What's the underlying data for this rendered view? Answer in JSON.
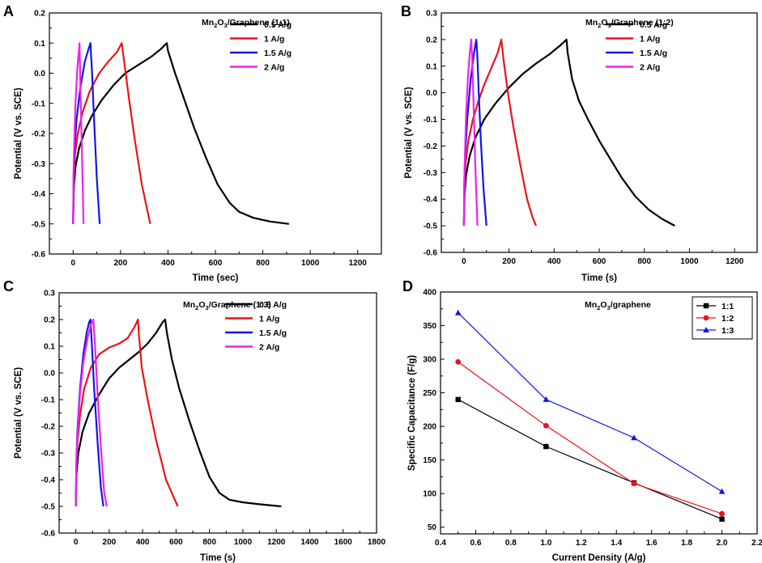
{
  "figure": {
    "colors": {
      "0.5 A/g": "#000000",
      "1 A/g": "#e8141a",
      "1.5 A/g": "#1414e6",
      "2 A/g": "#ee22ee",
      "1:1": "#000000",
      "1:2": "#e8141a",
      "1:3": "#1414e6"
    }
  },
  "chart_data": [
    {
      "id": "A",
      "type": "line",
      "panel_label": "A",
      "sample_label": {
        "pre": "Mn",
        "sub1": "2",
        "mid": "O",
        "sub2": "3",
        "post": "/Graphene (1:1)"
      },
      "xlabel": "Time (sec)",
      "ylabel": "Potential (V vs. SCE)",
      "xlim": [
        -100,
        1300
      ],
      "ylim": [
        -0.6,
        0.2
      ],
      "xticks": [
        0,
        200,
        400,
        600,
        800,
        1000,
        1200
      ],
      "yticks": [
        -0.6,
        -0.5,
        -0.4,
        -0.3,
        -0.2,
        -0.1,
        0.0,
        0.1,
        0.2
      ],
      "ytick_labels": [
        "-0.6",
        "-0.5",
        "-0.4",
        "-0.3",
        "-0.2",
        "-0.1",
        "0.0",
        "0.1",
        "0.2"
      ],
      "legend_position": "top-right",
      "series": [
        {
          "name": "0.5 A/g",
          "color": "#000000",
          "x": [
            0,
            3,
            10,
            25,
            50,
            80,
            120,
            170,
            220,
            280,
            330,
            370,
            395,
            400,
            430,
            470,
            510,
            560,
            610,
            660,
            700,
            760,
            830,
            910
          ],
          "y": [
            -0.5,
            -0.38,
            -0.31,
            -0.25,
            -0.19,
            -0.14,
            -0.09,
            -0.04,
            0.0,
            0.03,
            0.055,
            0.08,
            0.1,
            0.075,
            0.0,
            -0.09,
            -0.18,
            -0.28,
            -0.37,
            -0.43,
            -0.46,
            -0.48,
            -0.492,
            -0.5
          ]
        },
        {
          "name": "1 A/g",
          "color": "#e8141a",
          "x": [
            0,
            3,
            8,
            20,
            40,
            70,
            110,
            150,
            185,
            205,
            215,
            235,
            260,
            290,
            325
          ],
          "y": [
            -0.5,
            -0.35,
            -0.27,
            -0.2,
            -0.13,
            -0.06,
            0.0,
            0.04,
            0.07,
            0.1,
            0.04,
            -0.08,
            -0.22,
            -0.37,
            -0.5
          ]
        },
        {
          "name": "1.5 A/g",
          "color": "#1414e6",
          "x": [
            0,
            2,
            6,
            15,
            30,
            50,
            65,
            73,
            80,
            90,
            100,
            112
          ],
          "y": [
            -0.5,
            -0.34,
            -0.25,
            -0.15,
            -0.05,
            0.04,
            0.08,
            0.1,
            0.0,
            -0.18,
            -0.35,
            -0.5
          ]
        },
        {
          "name": "2 A/g",
          "color": "#ee22ee",
          "x": [
            0,
            2,
            5,
            10,
            18,
            25,
            27,
            30,
            36,
            44
          ],
          "y": [
            -0.5,
            -0.32,
            -0.22,
            -0.1,
            0.02,
            0.08,
            0.1,
            -0.02,
            -0.22,
            -0.5
          ]
        }
      ]
    },
    {
      "id": "B",
      "type": "line",
      "panel_label": "B",
      "sample_label": {
        "pre": "Mn",
        "sub1": "2",
        "mid": "O",
        "sub2": "3",
        "post": "/Graphene (1:2)"
      },
      "xlabel": "Time (s)",
      "ylabel": "Potential (V vs. SCE)",
      "xlim": [
        -100,
        1300
      ],
      "ylim": [
        -0.6,
        0.3
      ],
      "xticks": [
        0,
        200,
        400,
        600,
        800,
        1000,
        1200
      ],
      "yticks": [
        -0.6,
        -0.5,
        -0.4,
        -0.3,
        -0.2,
        -0.1,
        0.0,
        0.1,
        0.2,
        0.3
      ],
      "ytick_labels": [
        "-0.6",
        "-0.5",
        "-0.4",
        "-0.3",
        "-0.2",
        "-0.1",
        "0.0",
        "0.1",
        "0.2",
        "0.3"
      ],
      "legend_position": "top-right",
      "series": [
        {
          "name": "0.5 A/g",
          "color": "#000000",
          "x": [
            0,
            3,
            10,
            25,
            50,
            90,
            140,
            200,
            260,
            320,
            380,
            430,
            455,
            460,
            480,
            510,
            550,
            600,
            650,
            700,
            760,
            820,
            880,
            935
          ],
          "y": [
            -0.5,
            -0.38,
            -0.31,
            -0.24,
            -0.17,
            -0.1,
            -0.04,
            0.02,
            0.07,
            0.11,
            0.145,
            0.18,
            0.2,
            0.15,
            0.05,
            -0.03,
            -0.1,
            -0.18,
            -0.25,
            -0.32,
            -0.39,
            -0.44,
            -0.475,
            -0.5
          ]
        },
        {
          "name": "1 A/g",
          "color": "#e8141a",
          "x": [
            0,
            3,
            8,
            20,
            40,
            65,
            90,
            115,
            135,
            150,
            160,
            166,
            175,
            195,
            220,
            250,
            280,
            305,
            320
          ],
          "y": [
            -0.5,
            -0.35,
            -0.26,
            -0.18,
            -0.1,
            -0.03,
            0.03,
            0.08,
            0.12,
            0.15,
            0.18,
            0.2,
            0.13,
            0.0,
            -0.13,
            -0.27,
            -0.4,
            -0.47,
            -0.5
          ]
        },
        {
          "name": "1.5 A/g",
          "color": "#1414e6",
          "x": [
            0,
            2,
            6,
            15,
            30,
            45,
            55,
            60,
            66,
            75,
            87,
            100
          ],
          "y": [
            -0.5,
            -0.33,
            -0.23,
            -0.1,
            0.05,
            0.15,
            0.2,
            0.13,
            0.0,
            -0.18,
            -0.36,
            -0.5
          ]
        },
        {
          "name": "2 A/g",
          "color": "#ee22ee",
          "x": [
            0,
            2,
            5,
            10,
            18,
            27,
            33,
            37,
            42,
            50,
            60
          ],
          "y": [
            -0.5,
            -0.33,
            -0.22,
            -0.08,
            0.06,
            0.16,
            0.2,
            0.12,
            -0.02,
            -0.26,
            -0.5
          ]
        }
      ]
    },
    {
      "id": "C",
      "type": "line",
      "panel_label": "C",
      "sample_label": {
        "pre": "Mn",
        "sub1": "2",
        "mid": "O",
        "sub2": "3",
        "post": "/Graphene (1:3)"
      },
      "xlabel": "Time (s)",
      "ylabel": "Potential (V vs. SCE)",
      "xlim": [
        -100,
        1800
      ],
      "ylim": [
        -0.6,
        0.3
      ],
      "xticks": [
        0,
        200,
        400,
        600,
        800,
        1000,
        1200,
        1400,
        1600,
        1800
      ],
      "yticks": [
        -0.6,
        -0.5,
        -0.4,
        -0.3,
        -0.2,
        -0.1,
        0.0,
        0.1,
        0.2,
        0.3
      ],
      "ytick_labels": [
        "-0.6",
        "-0.5",
        "-0.4",
        "-0.3",
        "-0.2",
        "-0.1",
        "0.0",
        "0.1",
        "0.2",
        "0.3"
      ],
      "legend_position": "top-right",
      "series": [
        {
          "name": "0.5 A/g",
          "color": "#000000",
          "x": [
            0,
            4,
            15,
            40,
            80,
            140,
            200,
            260,
            320,
            380,
            430,
            480,
            520,
            535,
            545,
            575,
            620,
            680,
            740,
            800,
            860,
            920,
            1000,
            1100,
            1230
          ],
          "y": [
            -0.5,
            -0.38,
            -0.3,
            -0.22,
            -0.15,
            -0.08,
            -0.02,
            0.02,
            0.05,
            0.08,
            0.11,
            0.15,
            0.19,
            0.2,
            0.15,
            0.05,
            -0.06,
            -0.18,
            -0.29,
            -0.39,
            -0.45,
            -0.475,
            -0.485,
            -0.492,
            -0.5
          ]
        },
        {
          "name": "1 A/g",
          "color": "#e8141a",
          "x": [
            0,
            3,
            10,
            25,
            50,
            90,
            140,
            200,
            260,
            310,
            350,
            372,
            378,
            395,
            430,
            480,
            540,
            610
          ],
          "y": [
            -0.5,
            -0.36,
            -0.26,
            -0.16,
            -0.06,
            0.02,
            0.07,
            0.095,
            0.11,
            0.13,
            0.17,
            0.2,
            0.14,
            0.02,
            -0.1,
            -0.25,
            -0.4,
            -0.5
          ]
        },
        {
          "name": "1.5 A/g",
          "color": "#1414e6",
          "x": [
            0,
            3,
            10,
            25,
            45,
            65,
            80,
            88,
            95,
            110,
            130,
            150,
            165
          ],
          "y": [
            -0.5,
            -0.33,
            -0.21,
            -0.06,
            0.07,
            0.15,
            0.19,
            0.2,
            0.12,
            -0.06,
            -0.26,
            -0.43,
            -0.5
          ]
        },
        {
          "name": "2 A/g",
          "color": "#ee22ee",
          "x": [
            0,
            3,
            10,
            25,
            45,
            70,
            90,
            105,
            115,
            130,
            150,
            170,
            185
          ],
          "y": [
            -0.5,
            -0.35,
            -0.23,
            -0.08,
            0.04,
            0.13,
            0.18,
            0.2,
            0.1,
            -0.08,
            -0.28,
            -0.45,
            -0.5
          ]
        }
      ]
    },
    {
      "id": "D",
      "type": "line",
      "panel_label": "D",
      "sample_label": {
        "pre": "Mn",
        "sub1": "2",
        "mid": "O",
        "sub2": "3",
        "post": "/graphene"
      },
      "xlabel": "Current Density (A/g)",
      "ylabel": "Specific Capacitance (F/g)",
      "xlim": [
        0.4,
        2.2
      ],
      "ylim": [
        40,
        400
      ],
      "xticks": [
        0.4,
        0.6,
        0.8,
        1.0,
        1.2,
        1.4,
        1.6,
        1.8,
        2.0,
        2.2
      ],
      "xtick_labels": [
        "0.4",
        "0.6",
        "0.8",
        "1.0",
        "1.2",
        "1.4",
        "1.6",
        "1.8",
        "2.0",
        "2.2"
      ],
      "yticks": [
        50,
        100,
        150,
        200,
        250,
        300,
        350,
        400
      ],
      "legend_position": "top-right",
      "series": [
        {
          "name": "1:1",
          "color": "#000000",
          "marker": "square",
          "x": [
            0.5,
            1.0,
            1.5,
            2.0
          ],
          "y": [
            240,
            170,
            116,
            62
          ]
        },
        {
          "name": "1:2",
          "color": "#e8141a",
          "marker": "circle",
          "x": [
            0.5,
            1.0,
            1.5,
            2.0
          ],
          "y": [
            296,
            201,
            115,
            70
          ]
        },
        {
          "name": "1:3",
          "color": "#1414e6",
          "marker": "triangle",
          "x": [
            0.5,
            1.0,
            1.5,
            2.0
          ],
          "y": [
            369,
            240,
            183,
            103
          ]
        }
      ]
    }
  ]
}
